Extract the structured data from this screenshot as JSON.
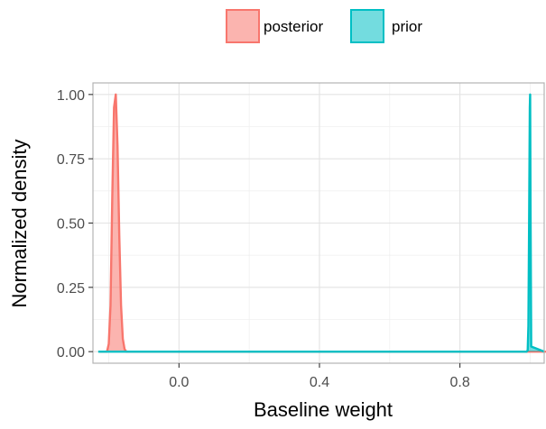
{
  "chart_data": {
    "type": "area",
    "xlabel": "Baseline weight",
    "ylabel": "Normalized density",
    "xlim": [
      -0.245,
      1.04
    ],
    "ylim": [
      -0.045,
      1.045
    ],
    "x_ticks": [
      0.0,
      0.4,
      0.8
    ],
    "x_tick_labels": [
      "0.0",
      "0.4",
      "0.8"
    ],
    "y_ticks": [
      0.0,
      0.25,
      0.5,
      0.75,
      1.0
    ],
    "y_tick_labels": [
      "0.00",
      "0.25",
      "0.50",
      "0.75",
      "1.00"
    ],
    "grid": true,
    "legend": {
      "position": "top",
      "entries": [
        "posterior",
        "prior"
      ]
    },
    "series": [
      {
        "name": "posterior",
        "color": "#F8766D",
        "fill": "#F8766D",
        "x": [
          -0.225,
          -0.205,
          -0.2,
          -0.195,
          -0.19,
          -0.185,
          -0.18,
          -0.175,
          -0.17,
          -0.165,
          -0.16,
          -0.155,
          -0.15,
          1.045
        ],
        "y": [
          0,
          0,
          0.03,
          0.18,
          0.6,
          0.95,
          1.0,
          0.8,
          0.45,
          0.18,
          0.05,
          0.01,
          0,
          0
        ]
      },
      {
        "name": "prior",
        "color": "#00BFC4",
        "fill": "#00BFC4",
        "x": [
          -0.23,
          0.99,
          0.993,
          0.995,
          0.997,
          0.999,
          1.0,
          1.001,
          1.003,
          1.04
        ],
        "y": [
          0,
          0,
          0.005,
          0.1,
          0.5,
          0.95,
          1.0,
          0.6,
          0.02,
          0
        ]
      }
    ]
  }
}
